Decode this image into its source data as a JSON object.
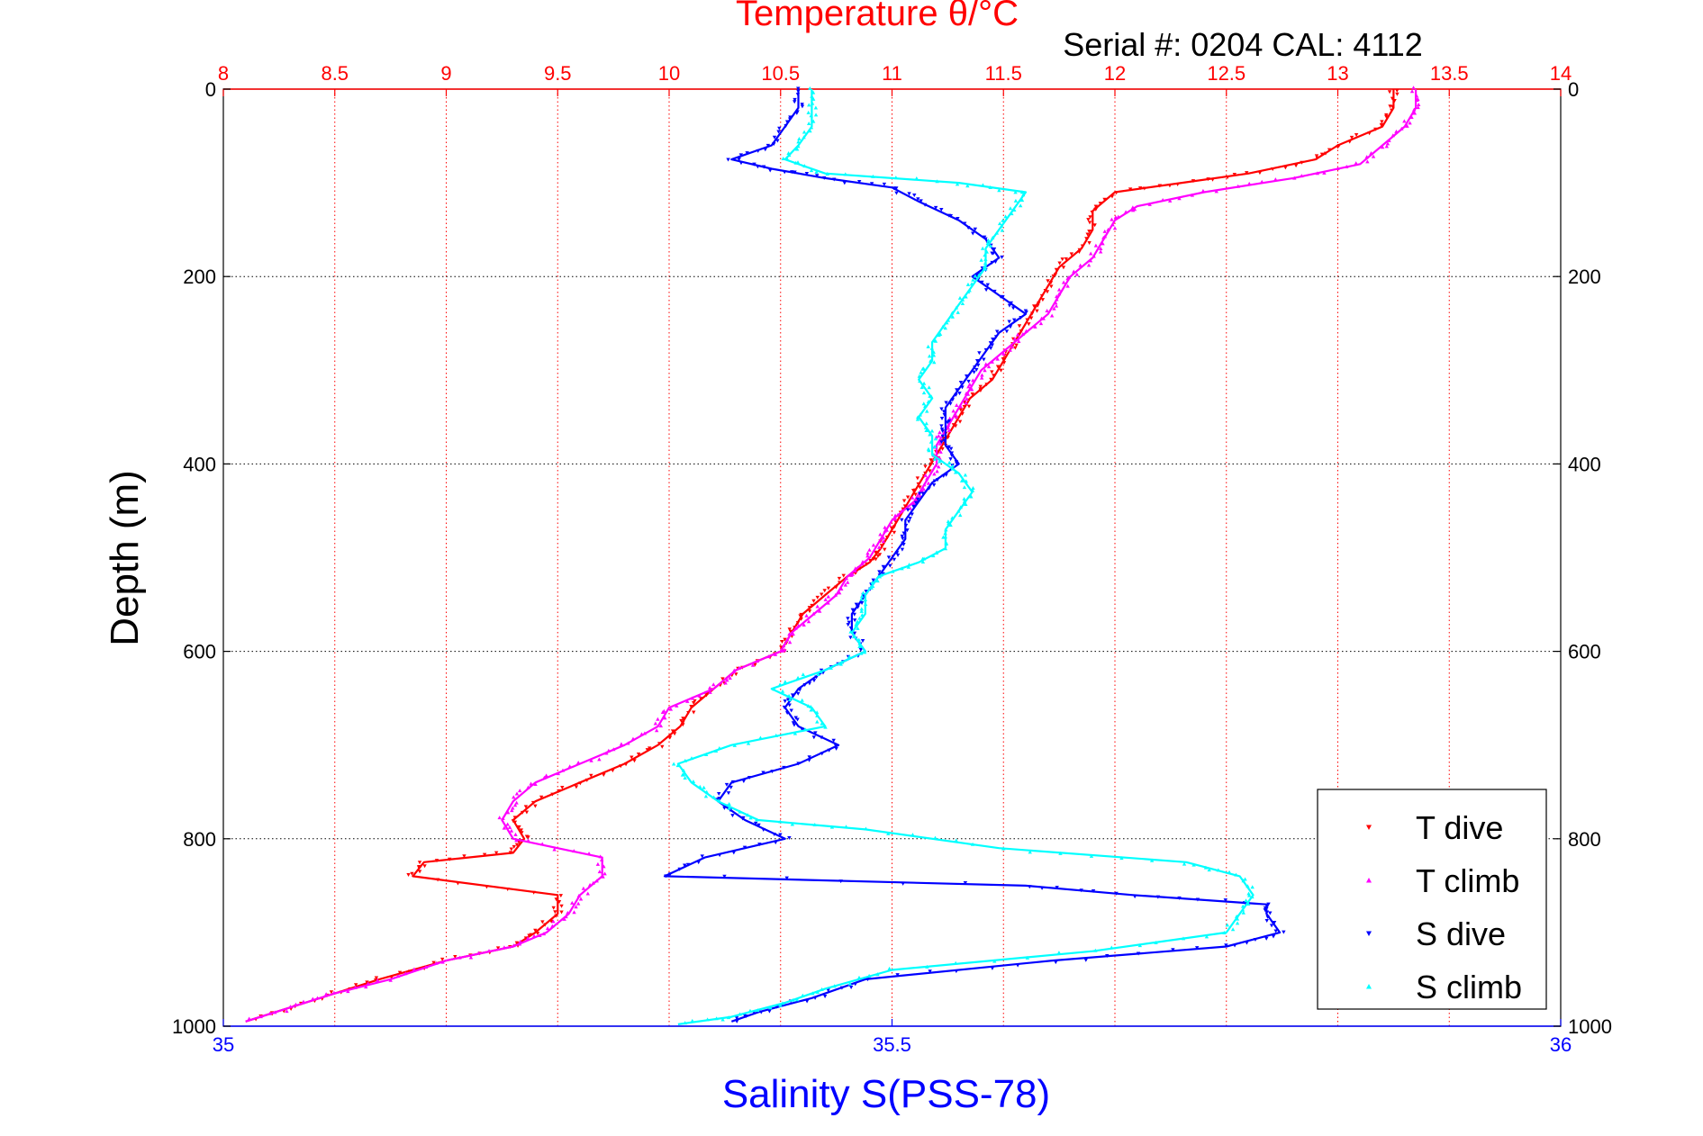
{
  "chart_data": {
    "type": "scatter",
    "title": "Temperature θ/°C",
    "subtitle": "Serial #: 0204  CAL: 4112",
    "ylabel": "Depth (m)",
    "xlabel_bottom": "Salinity S(PSS-78)",
    "xlabel_top": "Temperature θ/°C",
    "y_reversed": true,
    "grid": true,
    "legend_position": "bottom-right",
    "axes": {
      "depth": {
        "range": [
          0,
          1000
        ],
        "ticks": [
          "0",
          "200",
          "400",
          "600",
          "800",
          "1000"
        ]
      },
      "temperature": {
        "range": [
          8,
          14
        ],
        "ticks": [
          "8",
          "8.5",
          "9",
          "9.5",
          "10",
          "10.5",
          "11",
          "11.5",
          "12",
          "12.5",
          "13",
          "13.5",
          "14"
        ]
      },
      "salinity": {
        "range": [
          35,
          36
        ],
        "ticks": [
          "35",
          "35.5",
          "36"
        ]
      }
    },
    "colors": {
      "temperature_axis": "#ff0000",
      "salinity_axis": "#0000ff",
      "grid": "#000000"
    },
    "series": [
      {
        "name": "T dive",
        "axis": "temperature",
        "color": "#ff0000",
        "points": [
          [
            13.25,
            0
          ],
          [
            13.25,
            20
          ],
          [
            13.2,
            40
          ],
          [
            13.0,
            60
          ],
          [
            12.9,
            75
          ],
          [
            12.6,
            90
          ],
          [
            12.3,
            100
          ],
          [
            12.0,
            110
          ],
          [
            11.9,
            130
          ],
          [
            11.9,
            150
          ],
          [
            11.85,
            170
          ],
          [
            11.75,
            190
          ],
          [
            11.7,
            210
          ],
          [
            11.65,
            230
          ],
          [
            11.6,
            250
          ],
          [
            11.55,
            270
          ],
          [
            11.5,
            290
          ],
          [
            11.45,
            310
          ],
          [
            11.35,
            330
          ],
          [
            11.3,
            350
          ],
          [
            11.25,
            370
          ],
          [
            11.2,
            390
          ],
          [
            11.15,
            410
          ],
          [
            11.1,
            430
          ],
          [
            11.05,
            450
          ],
          [
            11.0,
            470
          ],
          [
            10.95,
            490
          ],
          [
            10.9,
            505
          ],
          [
            10.8,
            520
          ],
          [
            10.7,
            540
          ],
          [
            10.6,
            560
          ],
          [
            10.55,
            580
          ],
          [
            10.5,
            600
          ],
          [
            10.3,
            620
          ],
          [
            10.2,
            640
          ],
          [
            10.1,
            660
          ],
          [
            10.05,
            680
          ],
          [
            9.95,
            700
          ],
          [
            9.8,
            720
          ],
          [
            9.6,
            740
          ],
          [
            9.4,
            760
          ],
          [
            9.3,
            780
          ],
          [
            9.35,
            800
          ],
          [
            9.3,
            815
          ],
          [
            8.9,
            825
          ],
          [
            8.85,
            840
          ],
          [
            9.5,
            860
          ],
          [
            9.5,
            880
          ],
          [
            9.4,
            900
          ],
          [
            9.3,
            915
          ],
          [
            9.0,
            930
          ],
          [
            8.7,
            950
          ],
          [
            8.5,
            965
          ],
          [
            8.3,
            980
          ],
          [
            8.1,
            995
          ]
        ]
      },
      {
        "name": "T climb",
        "axis": "temperature",
        "color": "#ff00ff",
        "points": [
          [
            13.35,
            0
          ],
          [
            13.35,
            20
          ],
          [
            13.3,
            40
          ],
          [
            13.2,
            60
          ],
          [
            13.1,
            80
          ],
          [
            12.8,
            95
          ],
          [
            12.4,
            110
          ],
          [
            12.1,
            125
          ],
          [
            12.0,
            140
          ],
          [
            11.95,
            160
          ],
          [
            11.9,
            180
          ],
          [
            11.8,
            200
          ],
          [
            11.75,
            220
          ],
          [
            11.7,
            240
          ],
          [
            11.6,
            260
          ],
          [
            11.5,
            280
          ],
          [
            11.4,
            300
          ],
          [
            11.35,
            320
          ],
          [
            11.3,
            340
          ],
          [
            11.25,
            360
          ],
          [
            11.2,
            380
          ],
          [
            11.2,
            400
          ],
          [
            11.15,
            420
          ],
          [
            11.1,
            440
          ],
          [
            11.0,
            460
          ],
          [
            10.95,
            480
          ],
          [
            10.9,
            500
          ],
          [
            10.8,
            520
          ],
          [
            10.75,
            540
          ],
          [
            10.65,
            560
          ],
          [
            10.55,
            580
          ],
          [
            10.5,
            600
          ],
          [
            10.3,
            620
          ],
          [
            10.2,
            640
          ],
          [
            10.0,
            660
          ],
          [
            9.95,
            680
          ],
          [
            9.8,
            700
          ],
          [
            9.6,
            720
          ],
          [
            9.4,
            740
          ],
          [
            9.3,
            760
          ],
          [
            9.25,
            780
          ],
          [
            9.3,
            800
          ],
          [
            9.7,
            820
          ],
          [
            9.7,
            840
          ],
          [
            9.6,
            860
          ],
          [
            9.55,
            880
          ],
          [
            9.45,
            900
          ],
          [
            9.3,
            915
          ],
          [
            9.0,
            930
          ],
          [
            8.75,
            950
          ],
          [
            8.5,
            965
          ],
          [
            8.3,
            980
          ],
          [
            8.1,
            995
          ]
        ]
      },
      {
        "name": "S dive",
        "axis": "salinity",
        "color": "#0000ff",
        "points": [
          [
            35.43,
            0
          ],
          [
            35.43,
            20
          ],
          [
            35.42,
            40
          ],
          [
            35.41,
            60
          ],
          [
            35.38,
            75
          ],
          [
            35.41,
            85
          ],
          [
            35.45,
            95
          ],
          [
            35.5,
            105
          ],
          [
            35.52,
            120
          ],
          [
            35.55,
            140
          ],
          [
            35.57,
            160
          ],
          [
            35.58,
            180
          ],
          [
            35.56,
            200
          ],
          [
            35.58,
            220
          ],
          [
            35.6,
            240
          ],
          [
            35.58,
            260
          ],
          [
            35.57,
            280
          ],
          [
            35.56,
            300
          ],
          [
            35.55,
            320
          ],
          [
            35.54,
            340
          ],
          [
            35.54,
            360
          ],
          [
            35.54,
            380
          ],
          [
            35.55,
            400
          ],
          [
            35.53,
            420
          ],
          [
            35.52,
            440
          ],
          [
            35.51,
            460
          ],
          [
            35.51,
            480
          ],
          [
            35.5,
            500
          ],
          [
            35.49,
            520
          ],
          [
            35.48,
            540
          ],
          [
            35.47,
            560
          ],
          [
            35.47,
            580
          ],
          [
            35.48,
            600
          ],
          [
            35.45,
            620
          ],
          [
            35.43,
            640
          ],
          [
            35.42,
            660
          ],
          [
            35.43,
            680
          ],
          [
            35.46,
            700
          ],
          [
            35.43,
            720
          ],
          [
            35.38,
            740
          ],
          [
            35.37,
            760
          ],
          [
            35.39,
            780
          ],
          [
            35.42,
            800
          ],
          [
            35.36,
            820
          ],
          [
            35.33,
            840
          ],
          [
            35.6,
            850
          ],
          [
            35.68,
            860
          ],
          [
            35.78,
            870
          ],
          [
            35.78,
            880
          ],
          [
            35.79,
            900
          ],
          [
            35.75,
            915
          ],
          [
            35.62,
            930
          ],
          [
            35.48,
            950
          ],
          [
            35.44,
            970
          ],
          [
            35.4,
            985
          ],
          [
            35.38,
            995
          ]
        ]
      },
      {
        "name": "S climb",
        "axis": "salinity",
        "color": "#00ffff",
        "points": [
          [
            35.44,
            0
          ],
          [
            35.44,
            20
          ],
          [
            35.44,
            40
          ],
          [
            35.43,
            60
          ],
          [
            35.42,
            75
          ],
          [
            35.45,
            90
          ],
          [
            35.55,
            100
          ],
          [
            35.6,
            110
          ],
          [
            35.59,
            130
          ],
          [
            35.58,
            150
          ],
          [
            35.57,
            170
          ],
          [
            35.57,
            190
          ],
          [
            35.56,
            210
          ],
          [
            35.55,
            230
          ],
          [
            35.54,
            250
          ],
          [
            35.53,
            270
          ],
          [
            35.53,
            290
          ],
          [
            35.52,
            310
          ],
          [
            35.53,
            330
          ],
          [
            35.52,
            350
          ],
          [
            35.53,
            370
          ],
          [
            35.53,
            390
          ],
          [
            35.55,
            410
          ],
          [
            35.56,
            430
          ],
          [
            35.55,
            450
          ],
          [
            35.54,
            470
          ],
          [
            35.54,
            490
          ],
          [
            35.52,
            505
          ],
          [
            35.49,
            520
          ],
          [
            35.48,
            540
          ],
          [
            35.48,
            560
          ],
          [
            35.47,
            580
          ],
          [
            35.48,
            600
          ],
          [
            35.45,
            620
          ],
          [
            35.41,
            640
          ],
          [
            35.44,
            660
          ],
          [
            35.45,
            680
          ],
          [
            35.38,
            700
          ],
          [
            35.34,
            720
          ],
          [
            35.35,
            740
          ],
          [
            35.37,
            760
          ],
          [
            35.4,
            780
          ],
          [
            35.48,
            790
          ],
          [
            35.58,
            810
          ],
          [
            35.72,
            825
          ],
          [
            35.76,
            840
          ],
          [
            35.77,
            860
          ],
          [
            35.76,
            880
          ],
          [
            35.75,
            900
          ],
          [
            35.65,
            920
          ],
          [
            35.5,
            940
          ],
          [
            35.45,
            960
          ],
          [
            35.42,
            975
          ],
          [
            35.38,
            990
          ],
          [
            35.34,
            998
          ]
        ]
      }
    ]
  }
}
